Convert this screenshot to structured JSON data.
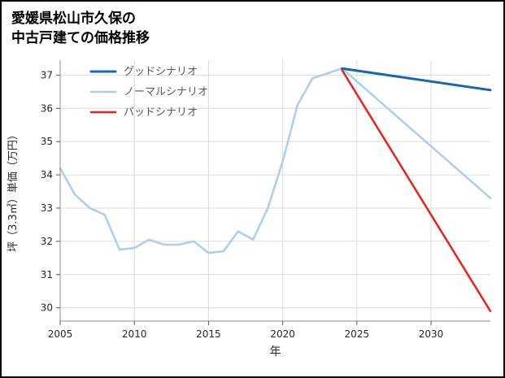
{
  "title": {
    "line1": "愛媛県松山市久保の",
    "line2": "中古戸建ての価格推移"
  },
  "chart_data": {
    "type": "line",
    "title": "愛媛県松山市久保の中古戸建ての価格推移",
    "xlabel": "年",
    "ylabel": "坪（3.3㎡）単価（万円）",
    "xlim": [
      2005,
      2034
    ],
    "ylim": [
      29.6,
      37.45
    ],
    "xticks": [
      2005,
      2010,
      2015,
      2020,
      2025,
      2030
    ],
    "yticks": [
      30,
      31,
      32,
      33,
      34,
      35,
      36,
      37
    ],
    "grid": true,
    "legend_position": "upper left",
    "colors": {
      "good": "#1667b1",
      "normal": "#abcdf0",
      "bad": "#e8201e"
    },
    "legend": [
      {
        "label": "グッドシナリオ",
        "color_key": "good",
        "width": 3
      },
      {
        "label": "ノーマルシナリオ",
        "color_key": "normal",
        "width": 2.5
      },
      {
        "label": "バッドシナリオ",
        "color_key": "bad",
        "width": 2.5
      }
    ],
    "series": [
      {
        "name": "ノーマルシナリオ",
        "color_key": "normal",
        "width": 2.5,
        "x": [
          2005,
          2006,
          2007,
          2008,
          2009,
          2010,
          2011,
          2012,
          2013,
          2014,
          2015,
          2016,
          2017,
          2018,
          2019,
          2020,
          2021,
          2022,
          2023,
          2024,
          2034
        ],
        "y": [
          34.2,
          33.4,
          33.0,
          32.8,
          31.75,
          31.8,
          32.05,
          31.9,
          31.9,
          32.0,
          31.65,
          31.7,
          32.3,
          32.05,
          33.0,
          34.4,
          36.1,
          36.9,
          37.05,
          37.2,
          33.3
        ]
      },
      {
        "name": "バッドシナリオ",
        "color_key": "bad",
        "width": 2.5,
        "x": [
          2024,
          2034
        ],
        "y": [
          37.15,
          29.9
        ]
      },
      {
        "name": "グッドシナリオ",
        "color_key": "good",
        "width": 3,
        "x": [
          2024,
          2034
        ],
        "y": [
          37.2,
          36.55
        ]
      }
    ],
    "style": {
      "grid_color": "#dcdcdc",
      "spine_color": "#8c8c8c",
      "tick_color": "#555555",
      "tick_label_color": "#262626",
      "axis_label_color": "#262626",
      "legend_text_color": "#595959"
    }
  }
}
